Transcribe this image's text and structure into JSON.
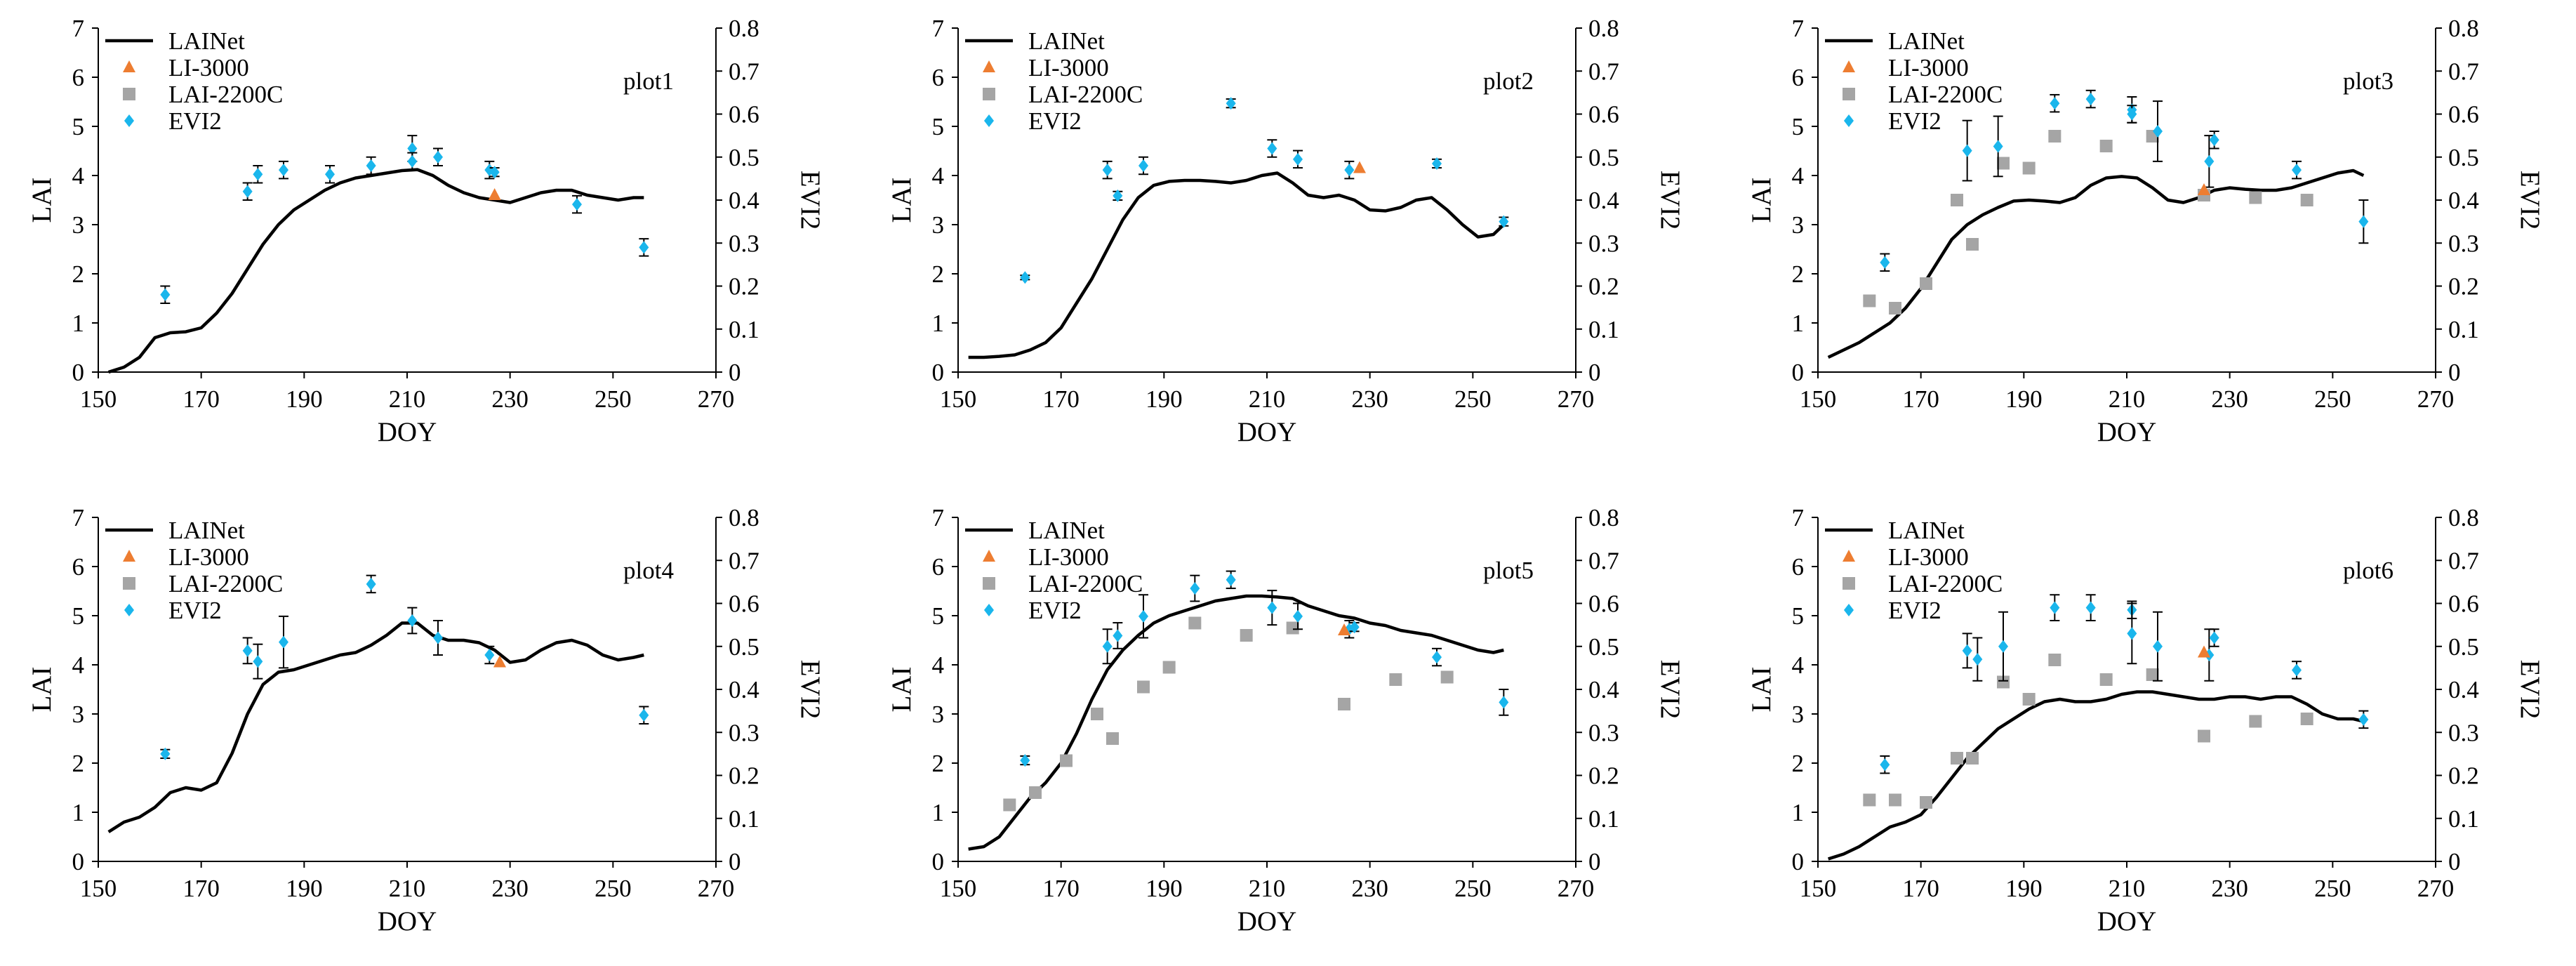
{
  "figure": {
    "colors": {
      "lainet": "#000000",
      "li3000": "#ed7d31",
      "lai2200c": "#a5a5a5",
      "evi2": "#1ab6ec",
      "errorbar": "#000000"
    }
  },
  "chart_data": [
    {
      "type": "line",
      "title": "plot1",
      "xlabel": "DOY",
      "ylabel": "LAI",
      "y2label": "EVI2",
      "xlim": [
        150,
        270
      ],
      "xticks": [
        150,
        170,
        190,
        210,
        230,
        250,
        270
      ],
      "ylim": [
        0,
        7
      ],
      "yticks": [
        0,
        1,
        2,
        3,
        4,
        5,
        6,
        7
      ],
      "y2lim": [
        0,
        0.8
      ],
      "y2ticks": [
        "0",
        "0.1",
        "0.2",
        "0.3",
        "0.4",
        "0.5",
        "0.6",
        "0.7",
        "0.8"
      ],
      "legend": [
        "LAINet",
        "LI-3000",
        "LAI-2200C",
        "EVI2"
      ],
      "lainet": {
        "x": [
          152,
          155,
          158,
          161,
          164,
          167,
          170,
          173,
          176,
          179,
          182,
          185,
          188,
          191,
          194,
          197,
          200,
          203,
          206,
          209,
          212,
          215,
          218,
          221,
          224,
          227,
          230,
          233,
          236,
          239,
          242,
          245,
          248,
          251,
          254,
          256
        ],
        "y": [
          0,
          0.1,
          0.3,
          0.7,
          0.8,
          0.82,
          0.9,
          1.2,
          1.6,
          2.1,
          2.6,
          3.0,
          3.3,
          3.5,
          3.7,
          3.85,
          3.95,
          4.0,
          4.05,
          4.1,
          4.12,
          4.0,
          3.8,
          3.65,
          3.55,
          3.5,
          3.45,
          3.55,
          3.65,
          3.7,
          3.7,
          3.6,
          3.55,
          3.5,
          3.55,
          3.55
        ]
      },
      "li3000": {
        "x": [
          227
        ],
        "y": [
          3.6
        ]
      },
      "lai2200c": {
        "x": [],
        "y": []
      },
      "evi2": {
        "x": [
          163,
          179,
          181,
          186,
          195,
          203,
          211,
          211,
          216,
          226,
          227,
          243,
          256
        ],
        "y": [
          0.18,
          0.42,
          0.46,
          0.47,
          0.46,
          0.48,
          0.52,
          0.49,
          0.5,
          0.47,
          0.465,
          0.39,
          0.29
        ],
        "err": [
          0.02,
          0.02,
          0.02,
          0.02,
          0.02,
          0.02,
          0.03,
          0.02,
          0.02,
          0.02,
          0.01,
          0.02,
          0.02
        ]
      }
    },
    {
      "type": "line",
      "title": "plot2",
      "xlabel": "DOY",
      "ylabel": "LAI",
      "y2label": "EVI2",
      "xlim": [
        150,
        270
      ],
      "xticks": [
        150,
        170,
        190,
        210,
        230,
        250,
        270
      ],
      "ylim": [
        0,
        7
      ],
      "yticks": [
        0,
        1,
        2,
        3,
        4,
        5,
        6,
        7
      ],
      "y2lim": [
        0,
        0.8
      ],
      "y2ticks": [
        "0",
        "0.1",
        "0.2",
        "0.3",
        "0.4",
        "0.5",
        "0.6",
        "0.7",
        "0.8"
      ],
      "legend": [
        "LAINet",
        "LI-3000",
        "LAI-2200C",
        "EVI2"
      ],
      "lainet": {
        "x": [
          152,
          155,
          158,
          161,
          164,
          167,
          170,
          173,
          176,
          179,
          182,
          185,
          188,
          191,
          194,
          197,
          200,
          203,
          206,
          209,
          212,
          215,
          218,
          221,
          224,
          227,
          230,
          233,
          236,
          239,
          242,
          245,
          248,
          251,
          254,
          256
        ],
        "y": [
          0.3,
          0.3,
          0.32,
          0.35,
          0.45,
          0.6,
          0.9,
          1.4,
          1.9,
          2.5,
          3.1,
          3.55,
          3.8,
          3.88,
          3.9,
          3.9,
          3.88,
          3.85,
          3.9,
          4.0,
          4.05,
          3.85,
          3.6,
          3.55,
          3.6,
          3.5,
          3.3,
          3.28,
          3.35,
          3.5,
          3.55,
          3.3,
          3.0,
          2.75,
          2.8,
          3.0
        ]
      },
      "li3000": {
        "x": [
          228
        ],
        "y": [
          4.15
        ]
      },
      "lai2200c": {
        "x": [],
        "y": []
      },
      "evi2": {
        "x": [
          163,
          179,
          181,
          186,
          203,
          211,
          216,
          226,
          243,
          256
        ],
        "y": [
          0.22,
          0.47,
          0.41,
          0.48,
          0.625,
          0.52,
          0.495,
          0.47,
          0.485,
          0.35
        ],
        "err": [
          0.005,
          0.02,
          0.01,
          0.02,
          0.01,
          0.02,
          0.02,
          0.02,
          0.01,
          0.01
        ]
      }
    },
    {
      "type": "line",
      "title": "plot3",
      "xlabel": "DOY",
      "ylabel": "LAI",
      "y2label": "EVI2",
      "xlim": [
        150,
        270
      ],
      "xticks": [
        150,
        170,
        190,
        210,
        230,
        250,
        270
      ],
      "ylim": [
        0,
        7
      ],
      "yticks": [
        0,
        1,
        2,
        3,
        4,
        5,
        6,
        7
      ],
      "y2lim": [
        0,
        0.8
      ],
      "y2ticks": [
        "0",
        "0.1",
        "0.2",
        "0.3",
        "0.4",
        "0.5",
        "0.6",
        "0.7",
        "0.8"
      ],
      "legend": [
        "LAINet",
        "LI-3000",
        "LAI-2200C",
        "EVI2"
      ],
      "lainet": {
        "x": [
          152,
          155,
          158,
          161,
          164,
          167,
          170,
          173,
          176,
          179,
          182,
          185,
          188,
          191,
          194,
          197,
          200,
          203,
          206,
          209,
          212,
          215,
          218,
          221,
          224,
          227,
          230,
          233,
          236,
          239,
          242,
          245,
          248,
          251,
          254,
          256
        ],
        "y": [
          0.3,
          0.45,
          0.6,
          0.8,
          1.0,
          1.3,
          1.7,
          2.2,
          2.7,
          3.0,
          3.2,
          3.35,
          3.48,
          3.5,
          3.48,
          3.45,
          3.55,
          3.8,
          3.95,
          3.98,
          3.95,
          3.75,
          3.5,
          3.45,
          3.55,
          3.7,
          3.75,
          3.72,
          3.7,
          3.7,
          3.75,
          3.85,
          3.95,
          4.05,
          4.1,
          4.0
        ]
      },
      "li3000": {
        "x": [
          225
        ],
        "y": [
          3.7
        ]
      },
      "lai2200c": {
        "x": [
          160,
          165,
          171,
          177,
          180,
          186,
          191,
          196,
          206,
          215,
          225,
          235,
          245
        ],
        "y": [
          1.45,
          1.3,
          1.8,
          3.5,
          2.6,
          4.25,
          4.15,
          4.8,
          4.6,
          4.8,
          3.6,
          3.55,
          3.5
        ]
      },
      "evi2": {
        "x": [
          163,
          179,
          185,
          196,
          203,
          211,
          211,
          216,
          226,
          227,
          243,
          256
        ],
        "y": [
          0.255,
          0.515,
          0.525,
          0.625,
          0.635,
          0.61,
          0.6,
          0.56,
          0.49,
          0.54,
          0.47,
          0.35
        ],
        "err": [
          0.02,
          0.07,
          0.07,
          0.02,
          0.02,
          0.03,
          0.02,
          0.07,
          0.06,
          0.02,
          0.02,
          0.05
        ]
      }
    },
    {
      "type": "line",
      "title": "plot4",
      "xlabel": "DOY",
      "ylabel": "LAI",
      "y2label": "EVI2",
      "xlim": [
        150,
        270
      ],
      "xticks": [
        150,
        170,
        190,
        210,
        230,
        250,
        270
      ],
      "ylim": [
        0,
        7
      ],
      "yticks": [
        0,
        1,
        2,
        3,
        4,
        5,
        6,
        7
      ],
      "y2lim": [
        0,
        0.8
      ],
      "y2ticks": [
        "0",
        "0.1",
        "0.2",
        "0.3",
        "0.4",
        "0.5",
        "0.6",
        "0.7",
        "0.8"
      ],
      "legend": [
        "LAINet",
        "LI-3000",
        "LAI-2200C",
        "EVI2"
      ],
      "lainet": {
        "x": [
          152,
          155,
          158,
          161,
          164,
          167,
          170,
          173,
          176,
          179,
          182,
          185,
          188,
          191,
          194,
          197,
          200,
          203,
          206,
          209,
          212,
          215,
          218,
          221,
          224,
          227,
          230,
          233,
          236,
          239,
          242,
          245,
          248,
          251,
          254,
          256
        ],
        "y": [
          0.6,
          0.8,
          0.9,
          1.1,
          1.4,
          1.5,
          1.45,
          1.6,
          2.2,
          3.0,
          3.6,
          3.85,
          3.9,
          4.0,
          4.1,
          4.2,
          4.25,
          4.4,
          4.6,
          4.85,
          4.85,
          4.6,
          4.5,
          4.5,
          4.45,
          4.3,
          4.05,
          4.1,
          4.3,
          4.45,
          4.5,
          4.4,
          4.2,
          4.1,
          4.15,
          4.2
        ]
      },
      "li3000": {
        "x": [
          228
        ],
        "y": [
          4.05
        ]
      },
      "lai2200c": {
        "x": [],
        "y": []
      },
      "evi2": {
        "x": [
          163,
          179,
          181,
          186,
          203,
          211,
          216,
          226,
          256
        ],
        "y": [
          0.25,
          0.49,
          0.465,
          0.51,
          0.645,
          0.56,
          0.52,
          0.48,
          0.34
        ],
        "err": [
          0.01,
          0.03,
          0.04,
          0.06,
          0.02,
          0.03,
          0.04,
          0.02,
          0.02
        ]
      }
    },
    {
      "type": "line",
      "title": "plot5",
      "xlabel": "DOY",
      "ylabel": "LAI",
      "y2label": "EVI2",
      "xlim": [
        150,
        270
      ],
      "xticks": [
        150,
        170,
        190,
        210,
        230,
        250,
        270
      ],
      "ylim": [
        0,
        7
      ],
      "yticks": [
        0,
        1,
        2,
        3,
        4,
        5,
        6,
        7
      ],
      "y2lim": [
        0,
        0.8
      ],
      "y2ticks": [
        "0",
        "0.1",
        "0.2",
        "0.3",
        "0.4",
        "0.5",
        "0.6",
        "0.7",
        "0.8"
      ],
      "legend": [
        "LAINet",
        "LI-3000",
        "LAI-2200C",
        "EVI2"
      ],
      "lainet": {
        "x": [
          152,
          155,
          158,
          161,
          164,
          167,
          170,
          173,
          176,
          179,
          182,
          185,
          188,
          191,
          194,
          197,
          200,
          203,
          206,
          209,
          212,
          215,
          218,
          221,
          224,
          227,
          230,
          233,
          236,
          239,
          242,
          245,
          248,
          251,
          254,
          256
        ],
        "y": [
          0.25,
          0.3,
          0.5,
          0.9,
          1.3,
          1.6,
          2.0,
          2.6,
          3.3,
          3.9,
          4.3,
          4.6,
          4.85,
          5.0,
          5.1,
          5.2,
          5.3,
          5.35,
          5.4,
          5.4,
          5.38,
          5.35,
          5.2,
          5.1,
          5.0,
          4.95,
          4.85,
          4.8,
          4.7,
          4.65,
          4.6,
          4.5,
          4.4,
          4.3,
          4.25,
          4.3
        ]
      },
      "li3000": {
        "x": [
          225
        ],
        "y": [
          4.7
        ]
      },
      "lai2200c": {
        "x": [
          160,
          165,
          171,
          177,
          180,
          186,
          191,
          196,
          206,
          215,
          225,
          235,
          245
        ],
        "y": [
          1.15,
          1.4,
          2.05,
          3.0,
          2.5,
          3.55,
          3.95,
          4.85,
          4.6,
          4.75,
          3.2,
          3.7,
          3.75
        ]
      },
      "evi2": {
        "x": [
          163,
          179,
          181,
          186,
          196,
          203,
          211,
          216,
          226,
          227,
          243,
          256
        ],
        "y": [
          0.235,
          0.5,
          0.525,
          0.57,
          0.635,
          0.655,
          0.59,
          0.57,
          0.54,
          0.545,
          0.475,
          0.37
        ],
        "err": [
          0.01,
          0.04,
          0.03,
          0.05,
          0.03,
          0.02,
          0.04,
          0.03,
          0.02,
          0.01,
          0.02,
          0.03
        ]
      }
    },
    {
      "type": "line",
      "title": "plot6",
      "xlabel": "DOY",
      "ylabel": "LAI",
      "y2label": "EVI2",
      "xlim": [
        150,
        270
      ],
      "xticks": [
        150,
        170,
        190,
        210,
        230,
        250,
        270
      ],
      "ylim": [
        0,
        7
      ],
      "yticks": [
        0,
        1,
        2,
        3,
        4,
        5,
        6,
        7
      ],
      "y2lim": [
        0,
        0.8
      ],
      "y2ticks": [
        "0",
        "0.1",
        "0.2",
        "0.3",
        "0.4",
        "0.5",
        "0.6",
        "0.7",
        "0.8"
      ],
      "legend": [
        "LAINet",
        "LI-3000",
        "LAI-2200C",
        "EVI2"
      ],
      "lainet": {
        "x": [
          152,
          155,
          158,
          161,
          164,
          167,
          170,
          173,
          176,
          179,
          182,
          185,
          188,
          191,
          194,
          197,
          200,
          203,
          206,
          209,
          212,
          215,
          218,
          221,
          224,
          227,
          230,
          233,
          236,
          239,
          242,
          245,
          248,
          251,
          254,
          256
        ],
        "y": [
          0.05,
          0.15,
          0.3,
          0.5,
          0.7,
          0.8,
          0.95,
          1.3,
          1.7,
          2.1,
          2.4,
          2.7,
          2.9,
          3.1,
          3.25,
          3.3,
          3.25,
          3.25,
          3.3,
          3.4,
          3.45,
          3.45,
          3.4,
          3.35,
          3.3,
          3.3,
          3.35,
          3.35,
          3.3,
          3.35,
          3.35,
          3.2,
          3.0,
          2.9,
          2.9,
          2.85
        ]
      },
      "li3000": {
        "x": [
          225
        ],
        "y": [
          4.25
        ]
      },
      "lai2200c": {
        "x": [
          160,
          165,
          171,
          177,
          180,
          186,
          191,
          196,
          206,
          215,
          225,
          235,
          245
        ],
        "y": [
          1.25,
          1.25,
          1.2,
          2.1,
          2.1,
          3.65,
          3.3,
          4.1,
          3.7,
          3.8,
          2.55,
          2.85,
          2.9
        ]
      },
      "evi2": {
        "x": [
          163,
          179,
          181,
          186,
          196,
          203,
          211,
          211,
          216,
          226,
          227,
          243,
          256
        ],
        "y": [
          0.225,
          0.49,
          0.47,
          0.5,
          0.59,
          0.59,
          0.585,
          0.53,
          0.5,
          0.48,
          0.52,
          0.445,
          0.33
        ],
        "err": [
          0.02,
          0.04,
          0.05,
          0.08,
          0.03,
          0.03,
          0.02,
          0.07,
          0.08,
          0.06,
          0.02,
          0.02,
          0.02
        ]
      }
    }
  ]
}
